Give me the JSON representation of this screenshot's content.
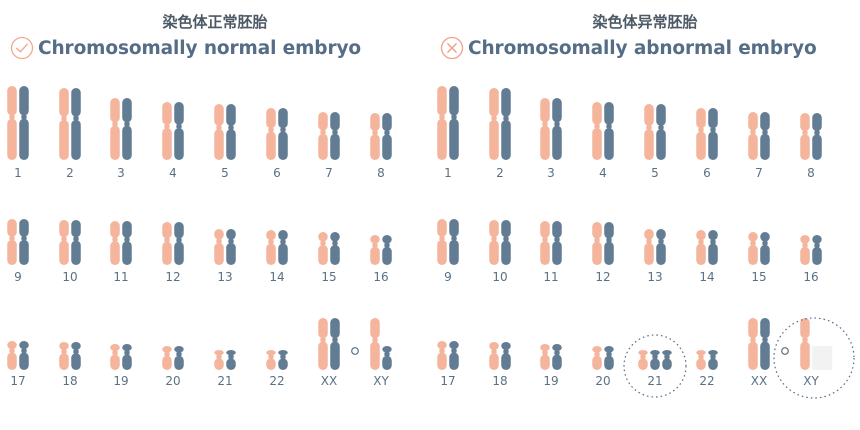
{
  "colors": {
    "maternal": "#f4b59c",
    "paternal": "#627c93",
    "label": "#5a7085",
    "title": "#556d85",
    "icon_ok": "#f0a98c",
    "icon_bad": "#ef9f83"
  },
  "panels": [
    {
      "id": "normal",
      "title_cn": "染色体正常胚胎",
      "title_en": "Chromosomally normal embryo",
      "status_icon": "check-circle-icon",
      "rows": [
        [
          {
            "label": "1",
            "chromosomes": [
              {
                "color": "maternal",
                "length": 74
              },
              {
                "color": "paternal",
                "length": 74
              }
            ]
          },
          {
            "label": "2",
            "chromosomes": [
              {
                "color": "maternal",
                "length": 72
              },
              {
                "color": "paternal",
                "length": 72
              }
            ]
          },
          {
            "label": "3",
            "chromosomes": [
              {
                "color": "maternal",
                "length": 62
              },
              {
                "color": "paternal",
                "length": 62
              }
            ]
          },
          {
            "label": "4",
            "chromosomes": [
              {
                "color": "maternal",
                "length": 58
              },
              {
                "color": "paternal",
                "length": 58
              }
            ]
          },
          {
            "label": "5",
            "chromosomes": [
              {
                "color": "maternal",
                "length": 56
              },
              {
                "color": "paternal",
                "length": 56
              }
            ]
          },
          {
            "label": "6",
            "chromosomes": [
              {
                "color": "maternal",
                "length": 52
              },
              {
                "color": "paternal",
                "length": 52
              }
            ]
          },
          {
            "label": "7",
            "chromosomes": [
              {
                "color": "maternal",
                "length": 48
              },
              {
                "color": "paternal",
                "length": 48
              }
            ]
          },
          {
            "label": "8",
            "chromosomes": [
              {
                "color": "maternal",
                "length": 47
              },
              {
                "color": "paternal",
                "length": 47
              }
            ]
          }
        ],
        [
          {
            "label": "9",
            "chromosomes": [
              {
                "color": "maternal",
                "length": 46
              },
              {
                "color": "paternal",
                "length": 46
              }
            ]
          },
          {
            "label": "10",
            "chromosomes": [
              {
                "color": "maternal",
                "length": 45
              },
              {
                "color": "paternal",
                "length": 45
              }
            ]
          },
          {
            "label": "11",
            "chromosomes": [
              {
                "color": "maternal",
                "length": 44
              },
              {
                "color": "paternal",
                "length": 44
              }
            ]
          },
          {
            "label": "12",
            "chromosomes": [
              {
                "color": "maternal",
                "length": 43
              },
              {
                "color": "paternal",
                "length": 43
              }
            ]
          },
          {
            "label": "13",
            "chromosomes": [
              {
                "color": "maternal",
                "length": 36
              },
              {
                "color": "paternal",
                "length": 36
              }
            ]
          },
          {
            "label": "14",
            "chromosomes": [
              {
                "color": "maternal",
                "length": 35
              },
              {
                "color": "paternal",
                "length": 35
              }
            ]
          },
          {
            "label": "15",
            "chromosomes": [
              {
                "color": "maternal",
                "length": 33
              },
              {
                "color": "paternal",
                "length": 33
              }
            ]
          },
          {
            "label": "16",
            "chromosomes": [
              {
                "color": "maternal",
                "length": 30
              },
              {
                "color": "paternal",
                "length": 30
              }
            ]
          }
        ],
        [
          {
            "label": "17",
            "chromosomes": [
              {
                "color": "maternal",
                "length": 29
              },
              {
                "color": "paternal",
                "length": 29
              }
            ]
          },
          {
            "label": "18",
            "chromosomes": [
              {
                "color": "maternal",
                "length": 28
              },
              {
                "color": "paternal",
                "length": 28
              }
            ]
          },
          {
            "label": "19",
            "chromosomes": [
              {
                "color": "maternal",
                "length": 26
              },
              {
                "color": "paternal",
                "length": 26
              }
            ]
          },
          {
            "label": "20",
            "chromosomes": [
              {
                "color": "maternal",
                "length": 24
              },
              {
                "color": "paternal",
                "length": 24
              }
            ]
          },
          {
            "label": "21",
            "chromosomes": [
              {
                "color": "maternal",
                "length": 20
              },
              {
                "color": "paternal",
                "length": 20
              }
            ]
          },
          {
            "label": "22",
            "chromosomes": [
              {
                "color": "maternal",
                "length": 20
              },
              {
                "color": "paternal",
                "length": 20
              }
            ]
          },
          {
            "label": "XX",
            "chromosomes": [
              {
                "color": "maternal",
                "length": 52
              },
              {
                "color": "paternal",
                "length": 52
              }
            ]
          },
          {
            "label": "XY",
            "chromosomes": [
              {
                "color": "maternal",
                "length": 52
              },
              {
                "color": "paternal",
                "length": 24
              }
            ]
          }
        ]
      ]
    },
    {
      "id": "abnormal",
      "title_cn": "染色体异常胚胎",
      "title_en": "Chromosomally abnormal embryo",
      "status_icon": "cross-circle-icon",
      "rows": [
        [
          {
            "label": "1",
            "chromosomes": [
              {
                "color": "maternal",
                "length": 74
              },
              {
                "color": "paternal",
                "length": 74
              }
            ]
          },
          {
            "label": "2",
            "chromosomes": [
              {
                "color": "maternal",
                "length": 72
              },
              {
                "color": "paternal",
                "length": 72
              }
            ]
          },
          {
            "label": "3",
            "chromosomes": [
              {
                "color": "maternal",
                "length": 62
              },
              {
                "color": "paternal",
                "length": 62
              }
            ]
          },
          {
            "label": "4",
            "chromosomes": [
              {
                "color": "maternal",
                "length": 58
              },
              {
                "color": "paternal",
                "length": 58
              }
            ]
          },
          {
            "label": "5",
            "chromosomes": [
              {
                "color": "maternal",
                "length": 56
              },
              {
                "color": "paternal",
                "length": 56
              }
            ]
          },
          {
            "label": "6",
            "chromosomes": [
              {
                "color": "maternal",
                "length": 52
              },
              {
                "color": "paternal",
                "length": 52
              }
            ]
          },
          {
            "label": "7",
            "chromosomes": [
              {
                "color": "maternal",
                "length": 48
              },
              {
                "color": "paternal",
                "length": 48
              }
            ]
          },
          {
            "label": "8",
            "chromosomes": [
              {
                "color": "maternal",
                "length": 47
              },
              {
                "color": "paternal",
                "length": 47
              }
            ]
          }
        ],
        [
          {
            "label": "9",
            "chromosomes": [
              {
                "color": "maternal",
                "length": 46
              },
              {
                "color": "paternal",
                "length": 46
              }
            ]
          },
          {
            "label": "10",
            "chromosomes": [
              {
                "color": "maternal",
                "length": 45
              },
              {
                "color": "paternal",
                "length": 45
              }
            ]
          },
          {
            "label": "11",
            "chromosomes": [
              {
                "color": "maternal",
                "length": 44
              },
              {
                "color": "paternal",
                "length": 44
              }
            ]
          },
          {
            "label": "12",
            "chromosomes": [
              {
                "color": "maternal",
                "length": 43
              },
              {
                "color": "paternal",
                "length": 43
              }
            ]
          },
          {
            "label": "13",
            "chromosomes": [
              {
                "color": "maternal",
                "length": 36
              },
              {
                "color": "paternal",
                "length": 36
              }
            ]
          },
          {
            "label": "14",
            "chromosomes": [
              {
                "color": "maternal",
                "length": 35
              },
              {
                "color": "paternal",
                "length": 35
              }
            ]
          },
          {
            "label": "15",
            "chromosomes": [
              {
                "color": "maternal",
                "length": 33
              },
              {
                "color": "paternal",
                "length": 33
              }
            ]
          },
          {
            "label": "16",
            "chromosomes": [
              {
                "color": "maternal",
                "length": 30
              },
              {
                "color": "paternal",
                "length": 30
              }
            ]
          }
        ],
        [
          {
            "label": "17",
            "chromosomes": [
              {
                "color": "maternal",
                "length": 29
              },
              {
                "color": "paternal",
                "length": 29
              }
            ]
          },
          {
            "label": "18",
            "chromosomes": [
              {
                "color": "maternal",
                "length": 28
              },
              {
                "color": "paternal",
                "length": 28
              }
            ]
          },
          {
            "label": "19",
            "chromosomes": [
              {
                "color": "maternal",
                "length": 26
              },
              {
                "color": "paternal",
                "length": 26
              }
            ]
          },
          {
            "label": "20",
            "chromosomes": [
              {
                "color": "maternal",
                "length": 24
              },
              {
                "color": "paternal",
                "length": 24
              }
            ]
          },
          {
            "label": "21",
            "highlighted": true,
            "chromosomes": [
              {
                "color": "maternal",
                "length": 20
              },
              {
                "color": "paternal",
                "length": 20
              },
              {
                "color": "paternal",
                "length": 20
              }
            ]
          },
          {
            "label": "22",
            "chromosomes": [
              {
                "color": "maternal",
                "length": 20
              },
              {
                "color": "paternal",
                "length": 20
              }
            ]
          },
          {
            "label": "XX",
            "chromosomes": [
              {
                "color": "maternal",
                "length": 52
              },
              {
                "color": "paternal",
                "length": 52
              }
            ]
          },
          {
            "label": "XY",
            "highlighted": true,
            "missing_y": true,
            "chromosomes": [
              {
                "color": "maternal",
                "length": 52
              }
            ]
          }
        ]
      ]
    }
  ]
}
